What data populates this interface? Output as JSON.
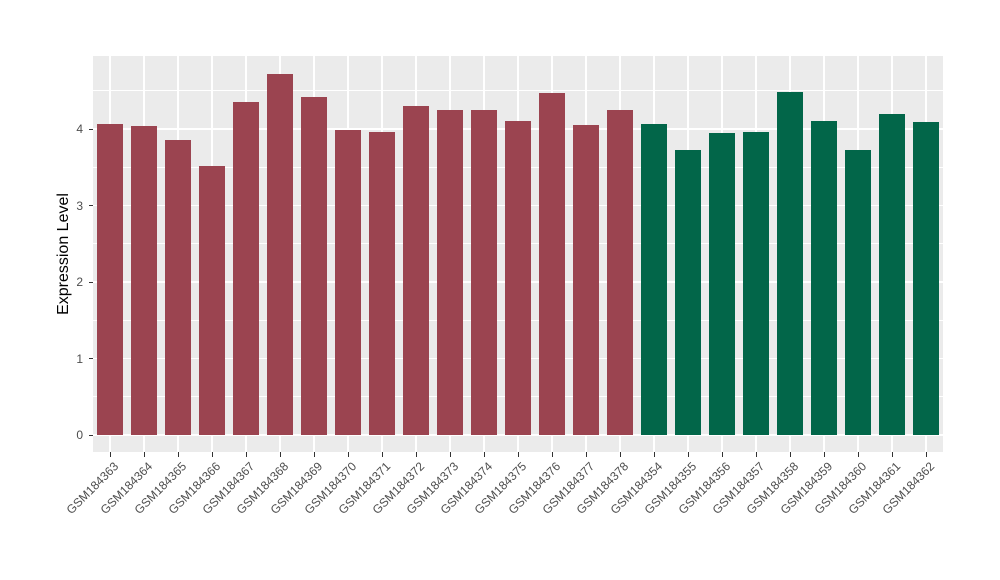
{
  "chart_data": {
    "type": "bar",
    "title": "",
    "xlabel": "",
    "ylabel": "Expression Level",
    "categories": [
      "GSM184363",
      "GSM184364",
      "GSM184365",
      "GSM184366",
      "GSM184367",
      "GSM184368",
      "GSM184369",
      "GSM184370",
      "GSM184371",
      "GSM184372",
      "GSM184373",
      "GSM184374",
      "GSM184375",
      "GSM184376",
      "GSM184377",
      "GSM184378",
      "GSM184354",
      "GSM184355",
      "GSM184356",
      "GSM184357",
      "GSM184358",
      "GSM184359",
      "GSM184360",
      "GSM184361",
      "GSM184362"
    ],
    "values": [
      4.07,
      4.04,
      3.85,
      3.52,
      4.35,
      4.72,
      4.42,
      3.99,
      3.96,
      4.3,
      4.25,
      4.25,
      4.11,
      4.47,
      4.05,
      4.25,
      4.07,
      3.73,
      3.95,
      3.96,
      4.49,
      4.11,
      3.73,
      4.19,
      4.09
    ],
    "groups": [
      {
        "color": "#9b4450",
        "start": 0,
        "end": 15
      },
      {
        "color": "#026649",
        "start": 16,
        "end": 24
      }
    ],
    "yticks": [
      "0",
      "1",
      "2",
      "3",
      "4"
    ],
    "ytick_values": [
      0,
      1,
      2,
      3,
      4
    ],
    "minor_ytick_values": [
      0.5,
      1.5,
      2.5,
      3.5,
      4.5
    ],
    "ylim": [
      0,
      4.96
    ],
    "legend_position": "none",
    "grid": "on",
    "panel_bg": "#ebebeb",
    "grid_color": "#ffffff",
    "axis_text_color": "#4d4d4d",
    "axis_title_color": "#000000"
  }
}
